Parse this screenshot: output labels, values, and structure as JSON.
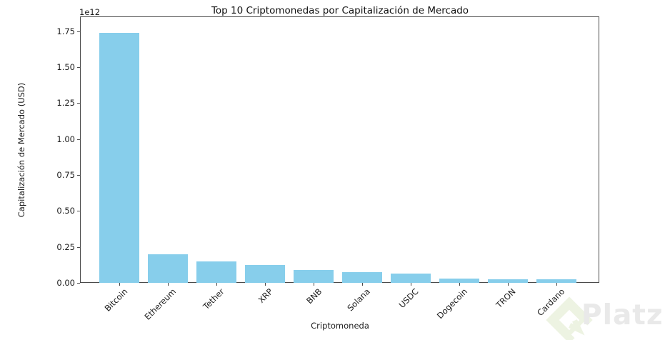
{
  "watermark": {
    "brand": "Platzi",
    "logo_color": "#edf3e2",
    "text_color": "#e9e9e9"
  },
  "chart_data": {
    "type": "bar",
    "title": "Top 10 Criptomonedas por Capitalización de Mercado",
    "xlabel": "Criptomoneda",
    "ylabel": "Capitalización de Mercado (USD)",
    "offset_text": "1e12",
    "bar_color": "#87CEEB",
    "grid": false,
    "legend": null,
    "categories": [
      "Bitcoin",
      "Ethereum",
      "Tether",
      "XRP",
      "BNB",
      "Solana",
      "USDC",
      "Dogecoin",
      "TRON",
      "Cardano"
    ],
    "values": [
      1740000000000,
      200000000000,
      150000000000,
      123000000000,
      88000000000,
      74000000000,
      64000000000,
      29000000000,
      26000000000,
      25000000000
    ],
    "ylim": [
      0,
      1850000000000
    ],
    "y_ticks": [
      {
        "label": "0.00",
        "value": 0
      },
      {
        "label": "0.25",
        "value": 250000000000
      },
      {
        "label": "0.50",
        "value": 500000000000
      },
      {
        "label": "0.75",
        "value": 750000000000
      },
      {
        "label": "1.00",
        "value": 1000000000000
      },
      {
        "label": "1.25",
        "value": 1250000000000
      },
      {
        "label": "1.50",
        "value": 1500000000000
      },
      {
        "label": "1.75",
        "value": 1750000000000
      }
    ]
  }
}
